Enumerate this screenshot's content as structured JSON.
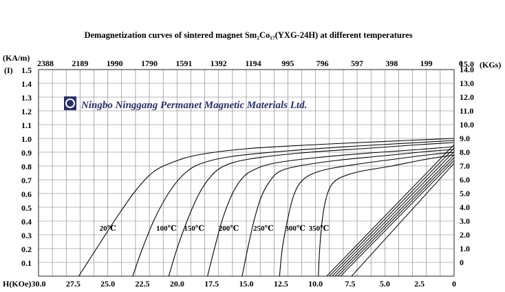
{
  "chart_data": {
    "type": "line",
    "title": "Demagnetization curves of sintered magnet Sm₂Co₁₇(YXG-24H) at different temperatures",
    "watermark": "Ningbo Ninggang Permanet Magnetic Materials Ltd.",
    "left_axis_label_top": "(KA/m)",
    "left_axis_label_bottom": "(I)",
    "right_axis_label": "(KGs)",
    "bottom_axis_label": "H(KOe)",
    "y_left_ticks": [
      "1.5",
      "1.4",
      "1.3",
      "1.2",
      "1.1",
      "1.0",
      "0.9",
      "0.8",
      "0.7",
      "0.6",
      "0.5",
      "0.4",
      "0.3",
      "0.2",
      "0.1"
    ],
    "y_right_ticks": [
      "15.0",
      "14.0",
      "13.0",
      "12.0",
      "11.0",
      "10.0",
      "9.0",
      "8.0",
      "7.0",
      "6.0",
      "5.0",
      "4.0",
      "3.0",
      "2.0",
      "1.0",
      "0"
    ],
    "x_bottom_ticks": [
      "30.0",
      "27.5",
      "25.0",
      "22.5",
      "20.0",
      "17.5",
      "15.0",
      "12.5",
      "10.0",
      "7.5",
      "5.0",
      "2.5",
      "0"
    ],
    "x_top_ticks": [
      "2388",
      "2189",
      "1990",
      "1790",
      "1591",
      "1392",
      "1194",
      "995",
      "796",
      "597",
      "398",
      "199",
      "0"
    ],
    "xlim": [
      30,
      0
    ],
    "ylim": [
      0,
      1.5
    ],
    "grid": true,
    "series": [
      {
        "name": "20℃",
        "label_at": [
          25.6,
          0.33
        ],
        "points": [
          [
            27.1,
            0
          ],
          [
            25.5,
            0.25
          ],
          [
            24.2,
            0.45
          ],
          [
            23.0,
            0.62
          ],
          [
            21.8,
            0.75
          ],
          [
            20.5,
            0.82
          ],
          [
            18.5,
            0.88
          ],
          [
            15.0,
            0.925
          ],
          [
            10.0,
            0.955
          ],
          [
            5.0,
            0.978
          ],
          [
            0,
            1.0
          ]
        ]
      },
      {
        "name": "100℃",
        "label_at": [
          21.5,
          0.33
        ],
        "points": [
          [
            23.2,
            0
          ],
          [
            22.5,
            0.2
          ],
          [
            21.6,
            0.42
          ],
          [
            20.5,
            0.62
          ],
          [
            19.4,
            0.75
          ],
          [
            18.2,
            0.82
          ],
          [
            16.0,
            0.87
          ],
          [
            12.0,
            0.91
          ],
          [
            7.0,
            0.945
          ],
          [
            3.0,
            0.968
          ],
          [
            0,
            0.985
          ]
        ]
      },
      {
        "name": "150℃",
        "label_at": [
          19.5,
          0.33
        ],
        "points": [
          [
            20.6,
            0
          ],
          [
            20.0,
            0.2
          ],
          [
            19.2,
            0.42
          ],
          [
            18.4,
            0.6
          ],
          [
            17.6,
            0.72
          ],
          [
            16.6,
            0.8
          ],
          [
            14.8,
            0.85
          ],
          [
            11.0,
            0.895
          ],
          [
            6.0,
            0.93
          ],
          [
            2.5,
            0.955
          ],
          [
            0,
            0.97
          ]
        ]
      },
      {
        "name": "200℃",
        "label_at": [
          17.0,
          0.33
        ],
        "points": [
          [
            17.8,
            0
          ],
          [
            17.3,
            0.2
          ],
          [
            16.7,
            0.42
          ],
          [
            16.0,
            0.6
          ],
          [
            15.3,
            0.71
          ],
          [
            14.5,
            0.77
          ],
          [
            13.0,
            0.82
          ],
          [
            10.0,
            0.86
          ],
          [
            6.0,
            0.895
          ],
          [
            2.5,
            0.92
          ],
          [
            0,
            0.94
          ]
        ]
      },
      {
        "name": "250℃",
        "label_at": [
          14.5,
          0.33
        ],
        "points": [
          [
            15.3,
            0
          ],
          [
            14.9,
            0.2
          ],
          [
            14.4,
            0.42
          ],
          [
            13.9,
            0.58
          ],
          [
            13.3,
            0.69
          ],
          [
            12.6,
            0.76
          ],
          [
            11.2,
            0.8
          ],
          [
            8.5,
            0.84
          ],
          [
            5.0,
            0.875
          ],
          [
            2.0,
            0.905
          ],
          [
            0,
            0.92
          ]
        ]
      },
      {
        "name": "300℃",
        "label_at": [
          12.2,
          0.33
        ],
        "points": [
          [
            12.6,
            0
          ],
          [
            12.4,
            0.2
          ],
          [
            12.0,
            0.42
          ],
          [
            11.6,
            0.58
          ],
          [
            11.1,
            0.68
          ],
          [
            10.3,
            0.74
          ],
          [
            9.0,
            0.78
          ],
          [
            6.5,
            0.82
          ],
          [
            3.5,
            0.86
          ],
          [
            1.5,
            0.885
          ],
          [
            0,
            0.9
          ]
        ]
      },
      {
        "name": "350℃",
        "label_at": [
          10.5,
          0.33
        ],
        "points": [
          [
            9.8,
            0
          ],
          [
            9.7,
            0.2
          ],
          [
            9.5,
            0.42
          ],
          [
            9.2,
            0.58
          ],
          [
            8.8,
            0.67
          ],
          [
            8.1,
            0.72
          ],
          [
            6.8,
            0.76
          ],
          [
            4.5,
            0.8
          ],
          [
            2.5,
            0.84
          ],
          [
            1.0,
            0.865
          ],
          [
            0,
            0.88
          ]
        ]
      }
    ],
    "recoil_lines": [
      {
        "points": [
          [
            9.2,
            0
          ],
          [
            0,
            0.955
          ]
        ]
      },
      {
        "points": [
          [
            9.0,
            0
          ],
          [
            0,
            0.93
          ]
        ]
      },
      {
        "points": [
          [
            8.8,
            0
          ],
          [
            0,
            0.905
          ]
        ]
      },
      {
        "points": [
          [
            8.6,
            0
          ],
          [
            0,
            0.88
          ]
        ]
      },
      {
        "points": [
          [
            8.4,
            0
          ],
          [
            0,
            0.86
          ]
        ]
      },
      {
        "points": [
          [
            8.2,
            0
          ],
          [
            0,
            0.84
          ]
        ]
      },
      {
        "points": [
          [
            7.4,
            0
          ],
          [
            0,
            0.82
          ]
        ]
      }
    ]
  }
}
